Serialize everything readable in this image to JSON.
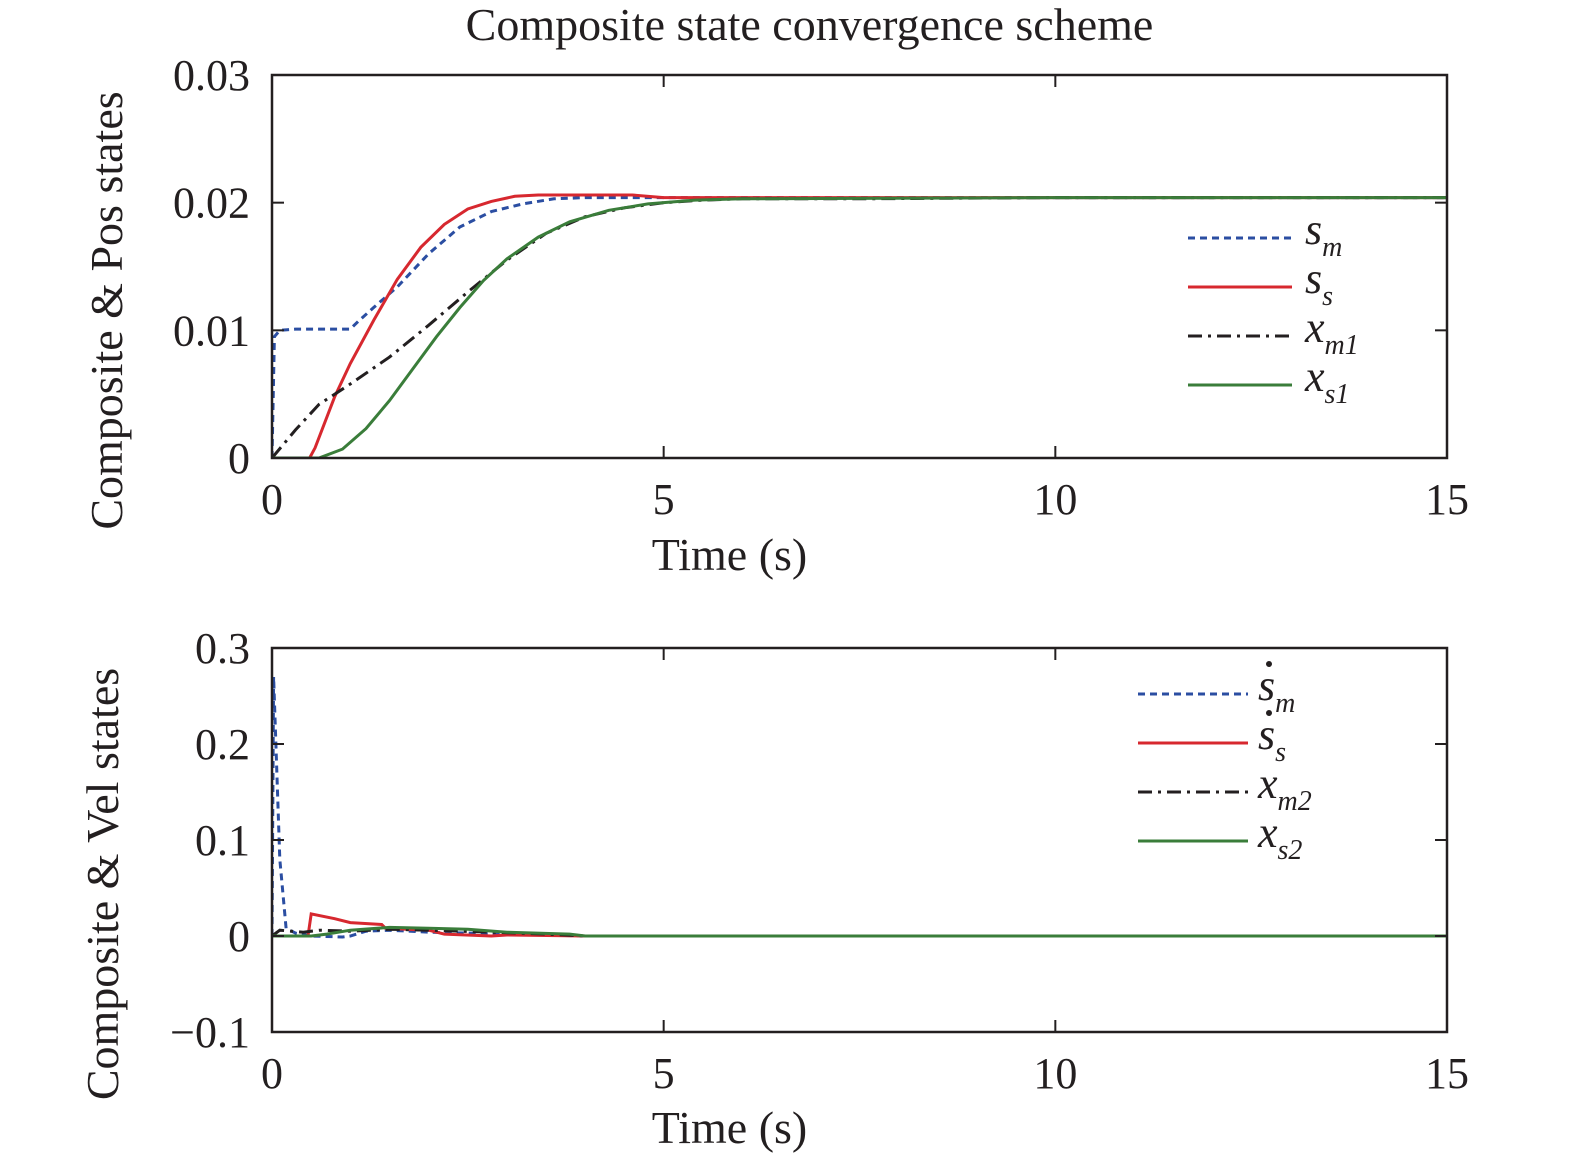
{
  "chart_data": [
    {
      "type": "line",
      "title": "Composite state convergence scheme",
      "xlabel": "Time (s)",
      "ylabel": "Composite & Pos states",
      "xlim": [
        0,
        15
      ],
      "ylim": [
        0,
        0.03
      ],
      "xticks": [
        0,
        5,
        10,
        15
      ],
      "xtick_labels": [
        "0",
        "5",
        "10",
        "15"
      ],
      "yticks": [
        0,
        0.01,
        0.02,
        0.03
      ],
      "ytick_labels": [
        "0",
        "0.01",
        "0.02",
        "0.03"
      ],
      "legend_position": "right",
      "series": [
        {
          "name": "s_m",
          "label_main": "s",
          "label_sub": "m",
          "label_dot": false,
          "color": "#2b4ea2",
          "dash": "dashed",
          "x": [
            0,
            0.03,
            0.1,
            0.3,
            0.6,
            1.0,
            1.1,
            1.3,
            1.6,
            2.0,
            2.4,
            2.8,
            3.2,
            3.6,
            4.0,
            4.6,
            5,
            10,
            15
          ],
          "y": [
            0,
            0.0095,
            0.01,
            0.0101,
            0.0101,
            0.0101,
            0.0107,
            0.0118,
            0.0134,
            0.016,
            0.0181,
            0.0193,
            0.0199,
            0.0203,
            0.0204,
            0.0204,
            0.0204,
            0.0204,
            0.0204
          ]
        },
        {
          "name": "s_s",
          "label_main": "s",
          "label_sub": "s",
          "label_dot": false,
          "color": "#d7282f",
          "dash": "solid",
          "x": [
            0,
            0.48,
            0.55,
            0.8,
            1.0,
            1.3,
            1.6,
            1.9,
            2.2,
            2.5,
            2.8,
            3.1,
            3.4,
            4.6,
            5,
            10,
            15
          ],
          "y": [
            0,
            0,
            0.0008,
            0.0048,
            0.0074,
            0.0108,
            0.014,
            0.0165,
            0.0183,
            0.0195,
            0.0201,
            0.0205,
            0.0206,
            0.0206,
            0.0204,
            0.0204,
            0.0204
          ]
        },
        {
          "name": "x_m1",
          "label_main": "x",
          "label_sub": "m1",
          "label_dot": false,
          "color": "#231f20",
          "dash": "dashdot",
          "x": [
            0,
            0.3,
            0.6,
            1.0,
            1.5,
            2.0,
            2.5,
            3.0,
            3.5,
            4.0,
            4.5,
            5.0,
            5.5,
            6.0,
            7.5,
            10,
            15
          ],
          "y": [
            0,
            0.0022,
            0.0042,
            0.0058,
            0.0079,
            0.0104,
            0.013,
            0.0155,
            0.0176,
            0.0189,
            0.0196,
            0.02,
            0.0202,
            0.0203,
            0.0203,
            0.0204,
            0.0204
          ]
        },
        {
          "name": "x_s1",
          "label_main": "x",
          "label_sub": "s1",
          "label_dot": false,
          "color": "#3a7d3a",
          "dash": "solid",
          "x": [
            0,
            0.6,
            0.9,
            1.2,
            1.5,
            1.8,
            2.1,
            2.4,
            2.7,
            3.0,
            3.4,
            3.8,
            4.3,
            4.8,
            5.4,
            6.0,
            10,
            15
          ],
          "y": [
            0,
            0,
            0.0007,
            0.0023,
            0.0045,
            0.007,
            0.0095,
            0.0118,
            0.0139,
            0.0156,
            0.0173,
            0.0185,
            0.0194,
            0.0199,
            0.0202,
            0.0203,
            0.0204,
            0.0204
          ]
        }
      ]
    },
    {
      "type": "line",
      "xlabel": "Time (s)",
      "ylabel": "Composite & Vel states",
      "xlim": [
        0,
        15
      ],
      "ylim": [
        -0.1,
        0.3
      ],
      "xticks": [
        0,
        5,
        10,
        15
      ],
      "xtick_labels": [
        "0",
        "5",
        "10",
        "15"
      ],
      "yticks": [
        -0.1,
        0,
        0.1,
        0.2,
        0.3
      ],
      "ytick_labels": [
        "−0.1",
        "0",
        "0.1",
        "0.2",
        "0.3"
      ],
      "legend_position": "top-right",
      "series": [
        {
          "name": "ṡ_m",
          "label_main": "s",
          "label_sub": "m",
          "label_dot": true,
          "color": "#2b4ea2",
          "dash": "dashed",
          "x": [
            0,
            0.02,
            0.1,
            0.18,
            0.3,
            0.5,
            0.9,
            1.0,
            1.2,
            1.5,
            2.0,
            2.5,
            3.0,
            4.0,
            15
          ],
          "y": [
            0,
            0.27,
            0.08,
            0.008,
            0.003,
            0.0,
            -0.001,
            0.0,
            0.005,
            0.006,
            0.004,
            0.003,
            0.002,
            0.0,
            0.0
          ]
        },
        {
          "name": "ṡ_s",
          "label_main": "s",
          "label_sub": "s",
          "label_dot": true,
          "color": "#d7282f",
          "dash": "solid",
          "x": [
            0,
            0.46,
            0.5,
            0.8,
            1.0,
            1.4,
            1.45,
            2.0,
            2.2,
            2.8,
            3.0,
            4.0,
            15
          ],
          "y": [
            0,
            0,
            0.023,
            0.018,
            0.014,
            0.012,
            0.008,
            0.006,
            0.002,
            0.0,
            0.001,
            0.0,
            0.0
          ]
        },
        {
          "name": "x_m2",
          "label_main": "x",
          "label_sub": "m2",
          "label_dot": false,
          "color": "#231f20",
          "dash": "dashdot",
          "x": [
            0,
            0.1,
            0.4,
            0.6,
            1.0,
            1.5,
            2.0,
            2.8,
            3.5,
            4.0,
            15
          ],
          "y": [
            0,
            0.006,
            0.004,
            0.006,
            0.005,
            0.007,
            0.006,
            0.004,
            0.002,
            0.0,
            0.0
          ]
        },
        {
          "name": "x_s2",
          "label_main": "x",
          "label_sub": "s2",
          "label_dot": false,
          "color": "#3a7d3a",
          "dash": "solid",
          "x": [
            0,
            0.5,
            0.7,
            1.0,
            1.5,
            2.0,
            2.5,
            3.0,
            3.8,
            4.0,
            15
          ],
          "y": [
            0,
            0,
            0.002,
            0.006,
            0.009,
            0.008,
            0.007,
            0.004,
            0.002,
            0.0,
            0.0
          ]
        }
      ]
    }
  ]
}
